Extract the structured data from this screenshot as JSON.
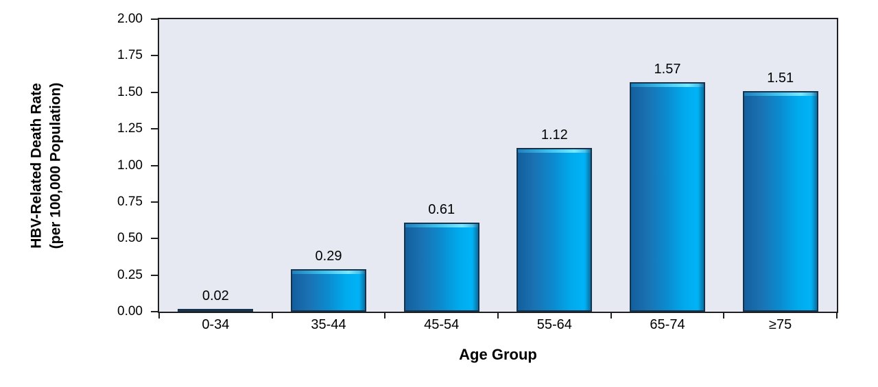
{
  "chart_data": {
    "type": "bar",
    "title": "",
    "xlabel": "Age Group",
    "ylabel_line1": "HBV-Related Death Rate",
    "ylabel_line2": "(per 100,000 Population)",
    "categories": [
      "0-34",
      "35-44",
      "45-54",
      "55-64",
      "65-74",
      "≥75"
    ],
    "values": [
      0.02,
      0.29,
      0.61,
      1.12,
      1.57,
      1.51
    ],
    "value_labels": [
      "0.02",
      "0.29",
      "0.61",
      "1.12",
      "1.57",
      "1.51"
    ],
    "ylim": [
      0,
      2
    ],
    "y_tick_step": 0.25,
    "y_ticks": [
      "0.00",
      "0.25",
      "0.50",
      "0.75",
      "1.00",
      "1.25",
      "1.50",
      "1.75",
      "2.00"
    ],
    "grid": false,
    "legend": "none",
    "colors": {
      "plot_bg": "#e6e9f1",
      "axis": "#1f1f1f",
      "bar_outline": "#15334d",
      "bar_body_left": "#135f9e",
      "bar_body_bright": "#00a9ec",
      "bar_bevel_light": "#79e7ff",
      "text": "#000000"
    }
  }
}
